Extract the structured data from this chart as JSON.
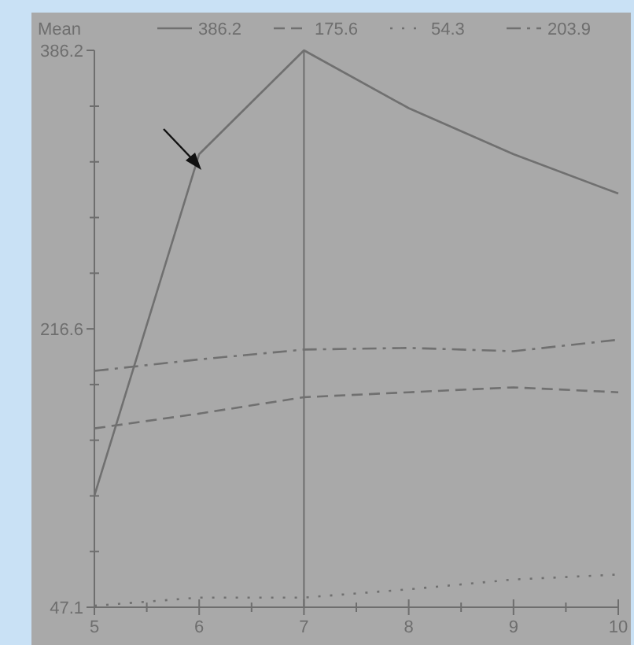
{
  "chart_data": {
    "type": "line",
    "legend_title": "Mean",
    "legend": "top",
    "grid": false,
    "marker": "none",
    "x": [
      5,
      6,
      7,
      8,
      9,
      10
    ],
    "xlim": [
      5,
      10
    ],
    "xticks": [
      5,
      {
        "value": 5.5,
        "label": null
      },
      6,
      {
        "value": 6.5,
        "label": null
      },
      7,
      {
        "value": 7.5,
        "label": null
      },
      8,
      {
        "value": 8.5,
        "label": null
      },
      9,
      {
        "value": 9.5,
        "label": null
      },
      10
    ],
    "ylim": [
      47.1,
      386.2
    ],
    "yticks": [
      47.1,
      {
        "value": 81.0,
        "label": null
      },
      {
        "value": 114.9,
        "label": null
      },
      {
        "value": 148.8,
        "label": null
      },
      {
        "value": 182.7,
        "label": null
      },
      216.6,
      {
        "value": 250.5,
        "label": null
      },
      {
        "value": 284.4,
        "label": null
      },
      {
        "value": 318.3,
        "label": null
      },
      {
        "value": 352.2,
        "label": null
      },
      386.2
    ],
    "ref_lines": [
      {
        "axis": "x",
        "value": 7,
        "color": "#6e6e6e"
      }
    ],
    "series": [
      {
        "name": "386.2",
        "color": "#707070",
        "line_style": "solid",
        "values": [
          115,
          323,
          386.2,
          351,
          323,
          299
        ]
      },
      {
        "name": "175.6",
        "color": "#707070",
        "line_style": "dashed",
        "values": [
          156,
          165,
          175,
          178,
          181,
          178
        ]
      },
      {
        "name": "54.3",
        "color": "#707070",
        "line_style": "dotted",
        "values": [
          48,
          53,
          53,
          58,
          64,
          67
        ]
      },
      {
        "name": "203.9",
        "color": "#707070",
        "line_style": "dashdot",
        "values": [
          191,
          198,
          204,
          205,
          203,
          210
        ]
      }
    ]
  }
}
